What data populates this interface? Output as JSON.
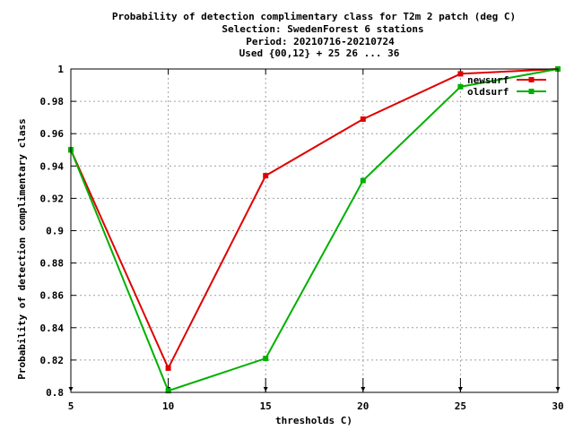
{
  "chart_data": {
    "type": "line",
    "title_lines": [
      "Probability of detection complimentary class  for T2m 2 patch (deg C)",
      "Selection: SwedenForest      6 stations",
      "Period: 20210716-20210724",
      "Used {00,12} + 25 26 ... 36"
    ],
    "xlabel": "thresholds C)",
    "ylabel": "Probability of detection complimentary class",
    "xlim": [
      5,
      30
    ],
    "ylim": [
      0.8,
      1.0
    ],
    "x_ticks": [
      5,
      10,
      15,
      20,
      25,
      30
    ],
    "y_ticks": [
      0.8,
      0.82,
      0.84,
      0.86,
      0.88,
      0.9,
      0.92,
      0.94,
      0.96,
      0.98,
      1.0
    ],
    "x_tick_labels": [
      "5",
      "10",
      "15",
      "20",
      "25",
      "30"
    ],
    "y_tick_labels": [
      "0.8",
      "0.82",
      "0.84",
      "0.86",
      "0.88",
      "0.9",
      "0.92",
      "0.94",
      "0.96",
      "0.98",
      "1"
    ],
    "grid": true,
    "legend_position": "top-right",
    "x": [
      5,
      10,
      15,
      20,
      25,
      30
    ],
    "series": [
      {
        "name": "newsurf",
        "color": "#e00000",
        "values": [
          0.95,
          0.815,
          0.934,
          0.969,
          0.997,
          1.0
        ]
      },
      {
        "name": "oldsurf",
        "color": "#00b000",
        "values": [
          0.95,
          0.801,
          0.821,
          0.931,
          0.989,
          1.0
        ]
      }
    ],
    "arrow_markers_x": [
      5,
      10,
      15,
      20,
      25,
      30
    ]
  }
}
